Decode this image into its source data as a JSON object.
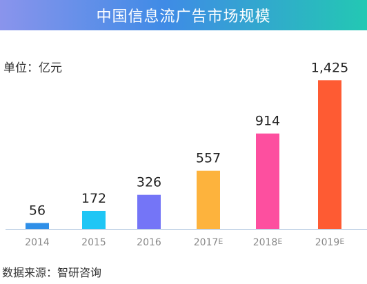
{
  "title": "中国信息流广告市场规模",
  "unit_label": "单位：亿元",
  "source_label": "数据来源：智研咨询",
  "colors": {
    "banner_start": "#8a94ec",
    "banner_mid": "#3f8be6",
    "banner_end": "#23c8b3",
    "axis": "#9fb9d8",
    "tick_text": "#888888",
    "value_text": "#222222"
  },
  "chart_data": {
    "type": "bar",
    "title": "中国信息流广告市场规模",
    "xlabel": "",
    "ylabel": "单位：亿元",
    "ylim": [
      0,
      1500
    ],
    "grid": false,
    "categories": [
      {
        "year": "2014",
        "suffix": ""
      },
      {
        "year": "2015",
        "suffix": ""
      },
      {
        "year": "2016",
        "suffix": ""
      },
      {
        "year": "2017",
        "suffix": "E"
      },
      {
        "year": "2018",
        "suffix": "E"
      },
      {
        "year": "2019",
        "suffix": "E"
      }
    ],
    "values": [
      56,
      172,
      326,
      557,
      914,
      1425
    ],
    "value_labels": [
      "56",
      "172",
      "326",
      "557",
      "914",
      "1,425"
    ],
    "bar_colors": [
      "#2f8fe8",
      "#1fc6f5",
      "#7475f7",
      "#fdb33d",
      "#fd4f9f",
      "#fe5b33"
    ]
  }
}
